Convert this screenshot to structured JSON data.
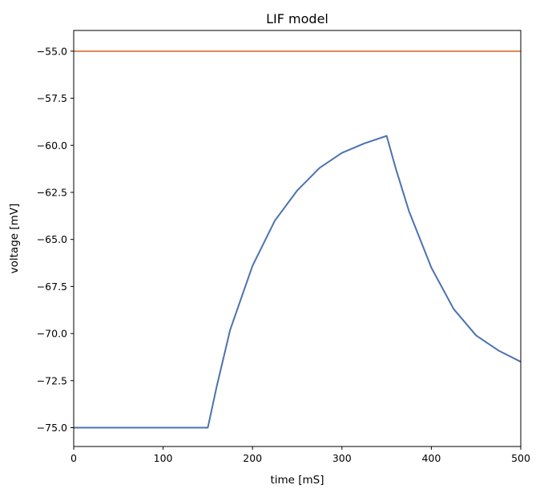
{
  "chart_data": {
    "type": "line",
    "title": "LIF model",
    "xlabel": "time [mS]",
    "ylabel": "voltage [mV]",
    "xlim": [
      0,
      500
    ],
    "ylim": [
      -76,
      -53.9
    ],
    "grid": false,
    "x_ticks": [
      0,
      100,
      200,
      300,
      400,
      500
    ],
    "x_tick_labels": [
      "0",
      "100",
      "200",
      "300",
      "400",
      "500"
    ],
    "y_ticks": [
      -55.0,
      -57.5,
      -60.0,
      -62.5,
      -65.0,
      -67.5,
      -70.0,
      -72.5,
      -75.0
    ],
    "y_tick_labels": [
      "−55.0",
      "−57.5",
      "−60.0",
      "−62.5",
      "−65.0",
      "−67.5",
      "−70.0",
      "−72.5",
      "−75.0"
    ],
    "series": [
      {
        "color": "#4c72b0",
        "x": [
          0,
          150,
          160,
          175,
          200,
          225,
          250,
          275,
          300,
          325,
          350,
          360,
          375,
          400,
          425,
          450,
          475,
          500
        ],
        "y": [
          -75.0,
          -75.0,
          -72.8,
          -69.8,
          -66.4,
          -64.0,
          -62.4,
          -61.2,
          -60.4,
          -59.9,
          -59.5,
          -61.2,
          -63.5,
          -66.5,
          -68.7,
          -70.1,
          -70.9,
          -71.5
        ]
      },
      {
        "color": "#dd8452",
        "x": [
          0,
          500
        ],
        "y": [
          -55.0,
          -55.0
        ]
      }
    ]
  }
}
